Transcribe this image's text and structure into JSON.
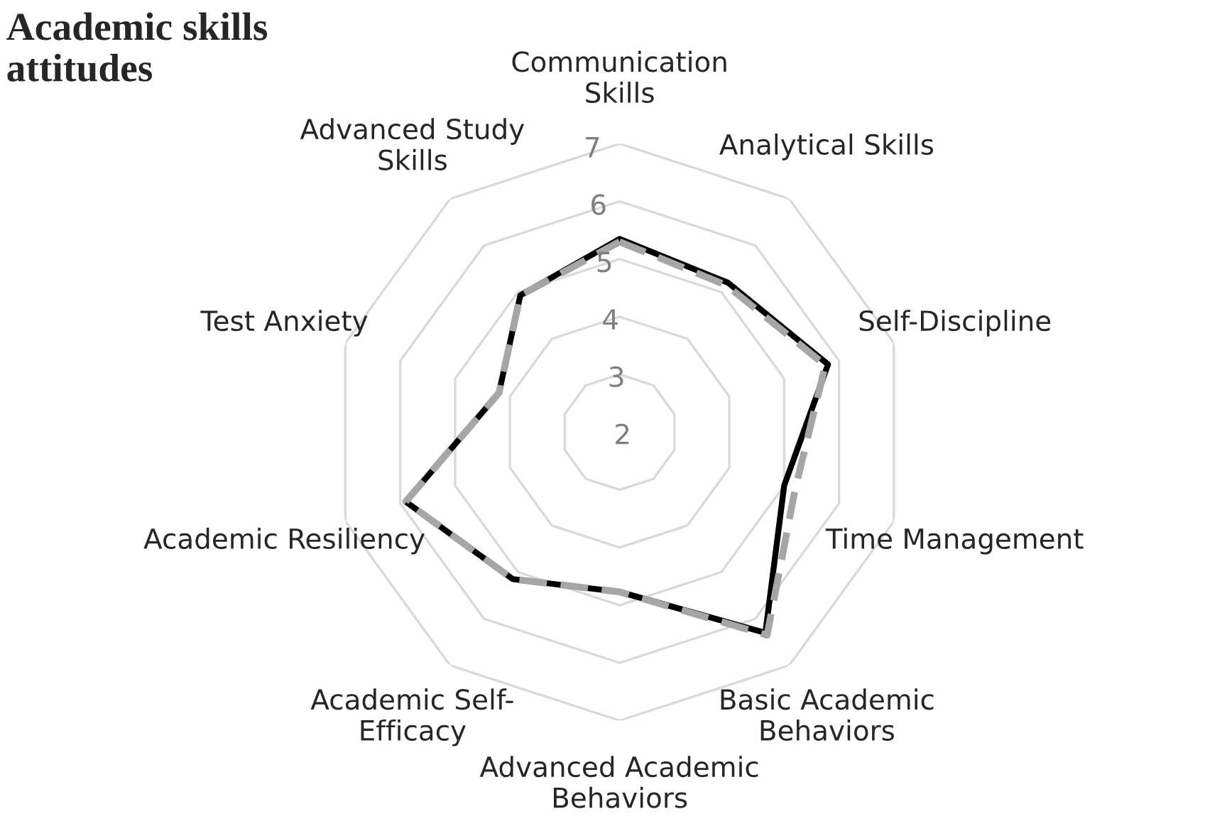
{
  "chart_data": {
    "type": "radar",
    "title": "Academic skills\nattitudes",
    "categories": [
      "Communication\nSkills",
      "Analytical Skills",
      "Self-Discipline",
      "Time Management",
      "Basic Academic\nBehaviors",
      "Advanced Academic\nBehaviors",
      "Academic Self-\nEfficacy",
      "Academic Resiliency",
      "Test Anxiety",
      "Advanced Study\nSkills"
    ],
    "series": [
      {
        "color": "#000000",
        "line_style": "solid",
        "values": [
          5.35,
          5.2,
          5.8,
          5.0,
          6.3,
          4.77,
          5.15,
          5.9,
          4.2,
          4.93
        ]
      },
      {
        "color": "#a6a6a6",
        "line_style": "dashed",
        "values": [
          5.3,
          5.15,
          5.75,
          5.2,
          6.35,
          4.77,
          5.15,
          5.9,
          4.2,
          4.93
        ]
      }
    ],
    "ylim": [
      2,
      7
    ],
    "yticks": [
      2,
      3,
      4,
      5,
      6,
      7
    ],
    "grid": true
  }
}
